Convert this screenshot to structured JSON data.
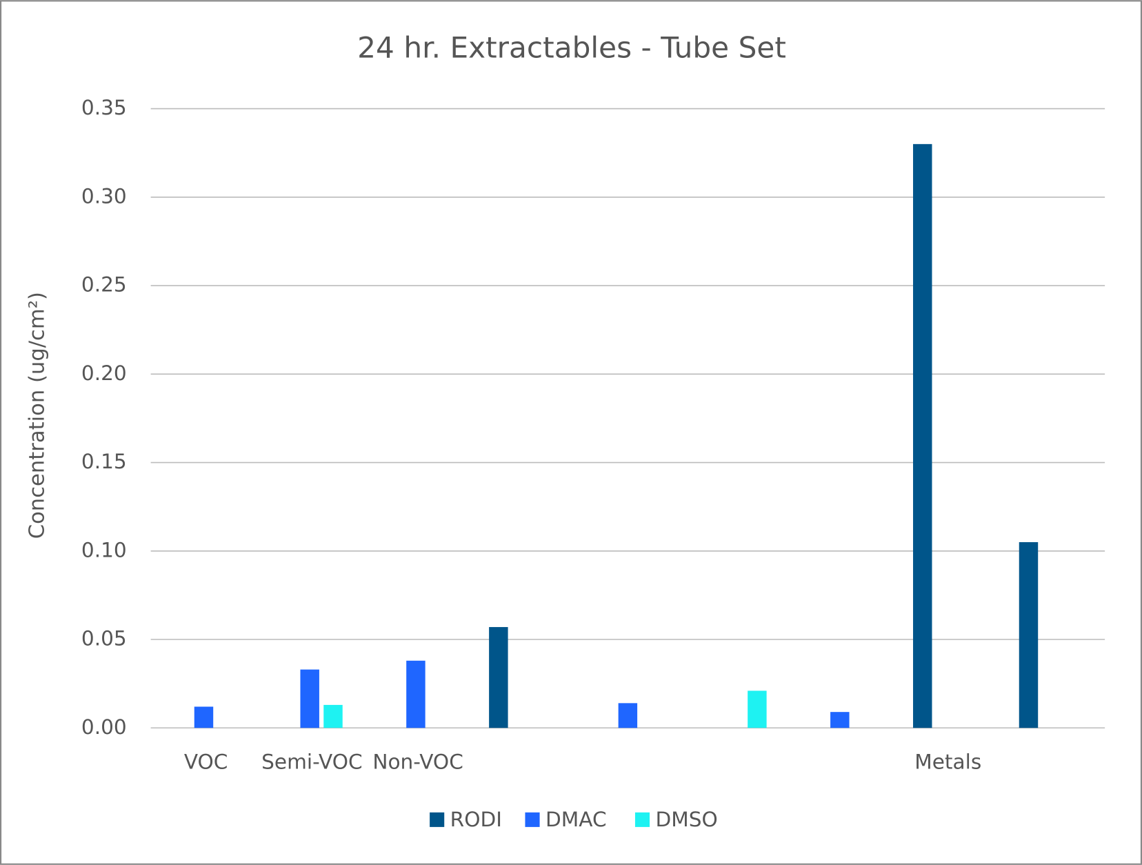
{
  "chart_data": {
    "type": "bar",
    "title": "24 hr. Extractables - Tube Set",
    "y_label": "Concentration (ug/cm²)",
    "categories": [
      "VOC",
      "Semi-VOC",
      "Non-VOC",
      null,
      null,
      null,
      null,
      "Metals",
      null
    ],
    "series": [
      {
        "name": "RODI",
        "color": "#00558a",
        "values": [
          null,
          null,
          null,
          0.057,
          null,
          null,
          null,
          0.33,
          0.105
        ]
      },
      {
        "name": "DMAC",
        "color": "#1f66ff",
        "values": [
          0.012,
          0.033,
          0.038,
          null,
          0.014,
          null,
          0.009,
          null,
          null
        ]
      },
      {
        "name": "DMSO",
        "color": "#1ef2f2",
        "values": [
          null,
          0.013,
          null,
          null,
          null,
          0.021,
          null,
          null,
          null
        ]
      }
    ],
    "ylim": [
      0,
      0.35
    ],
    "yticks": [
      {
        "value": 0,
        "label": "0.00"
      },
      {
        "value": 0.05,
        "label": "0.05"
      },
      {
        "value": 0.1,
        "label": "0.10"
      },
      {
        "value": 0.15,
        "label": "0.15"
      },
      {
        "value": 0.2,
        "label": "0.20"
      },
      {
        "value": 0.25,
        "label": "0.25"
      },
      {
        "value": 0.3,
        "label": "0.30"
      },
      {
        "value": 0.35,
        "label": "0.35"
      }
    ],
    "grid": true,
    "legend": "bottom"
  }
}
